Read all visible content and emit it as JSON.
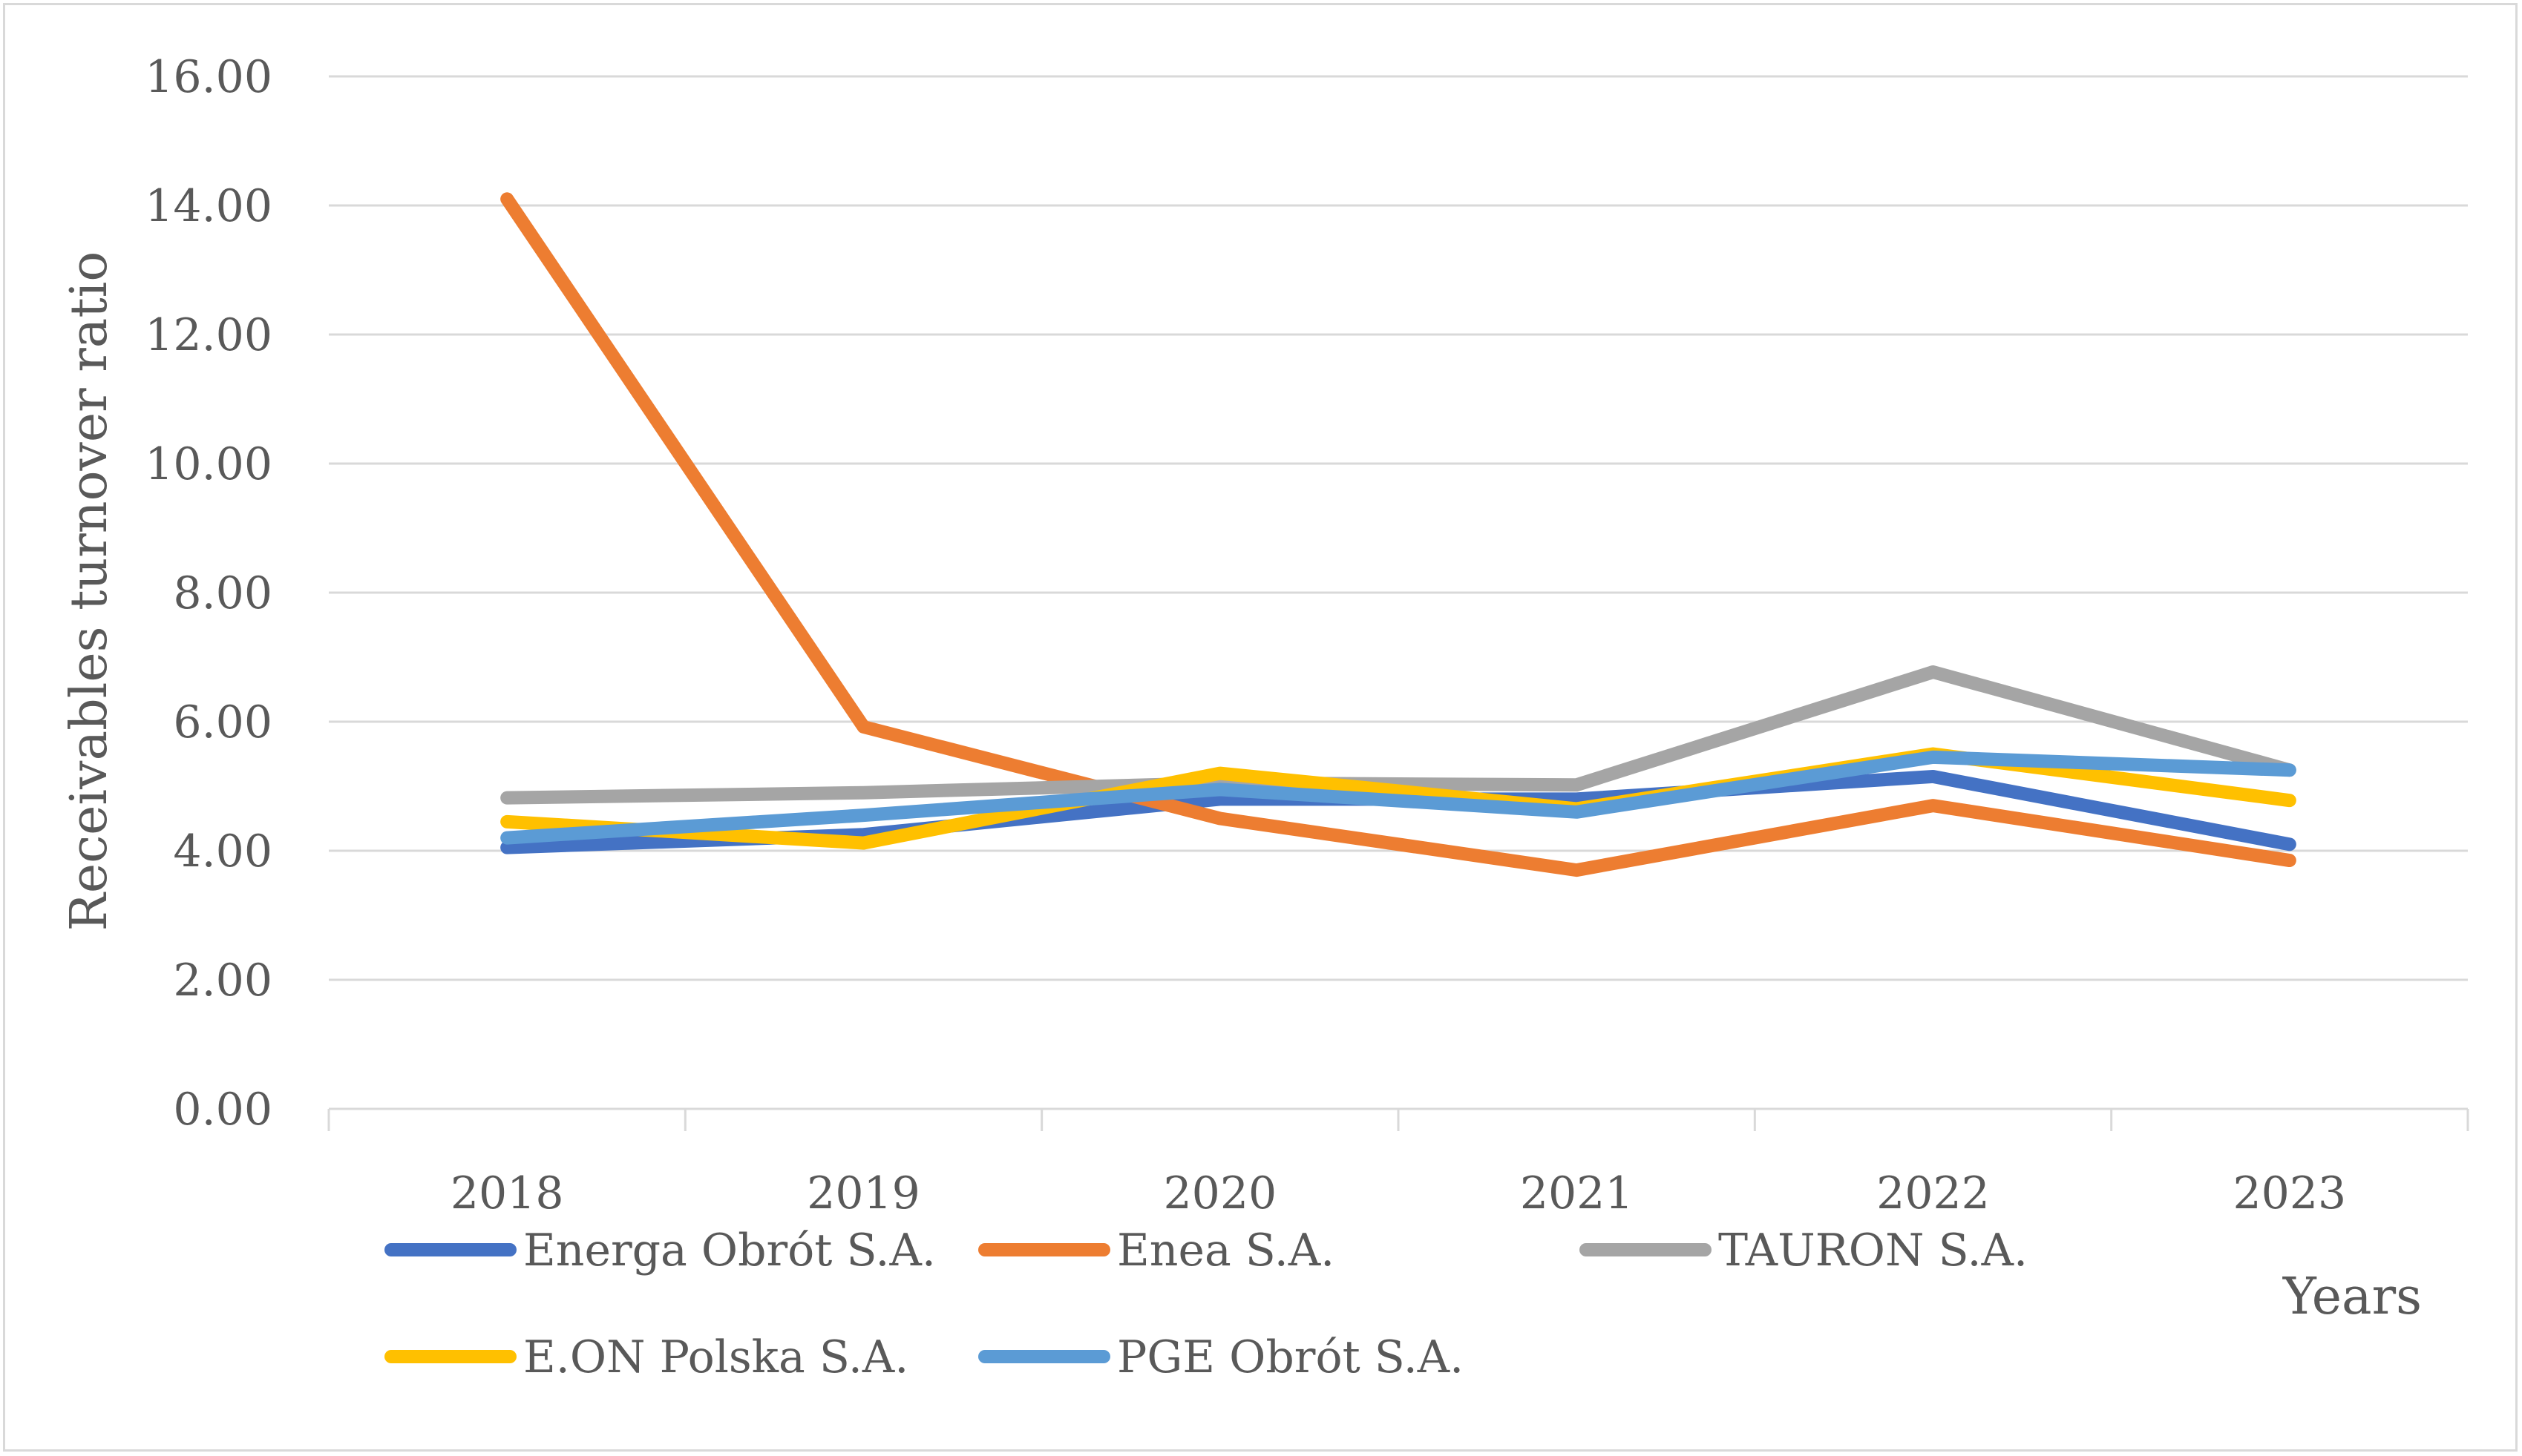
{
  "chart_data": {
    "type": "line",
    "categories": [
      "2018",
      "2019",
      "2020",
      "2021",
      "2022",
      "2023"
    ],
    "series": [
      {
        "name": "Energa Obrót S.A.",
        "color": "#4472C4",
        "values": [
          4.05,
          4.25,
          4.8,
          4.8,
          5.15,
          4.1
        ]
      },
      {
        "name": "Enea S.A.",
        "color": "#ED7D31",
        "values": [
          14.1,
          5.92,
          4.5,
          3.7,
          4.7,
          3.85
        ]
      },
      {
        "name": "TAURON S.A.",
        "color": "#A5A5A5",
        "values": [
          4.82,
          4.9,
          5.05,
          5.02,
          6.77,
          5.25
        ]
      },
      {
        "name": "E.ON Polska S.A.",
        "color": "#FFC000",
        "values": [
          4.45,
          4.12,
          5.2,
          4.65,
          5.5,
          4.78
        ]
      },
      {
        "name": "PGE Obrót S.A.",
        "color": "#5B9BD5",
        "values": [
          4.2,
          4.55,
          4.95,
          4.6,
          5.45,
          5.25
        ]
      }
    ],
    "y_ticks": [
      "0.00",
      "2.00",
      "4.00",
      "6.00",
      "8.00",
      "10.00",
      "12.00",
      "14.00",
      "16.00"
    ],
    "ylim": [
      0,
      16
    ],
    "ylabel": "Receivables turnover ratio",
    "xlabel": "Years",
    "grid": true,
    "legend_position": "bottom"
  }
}
